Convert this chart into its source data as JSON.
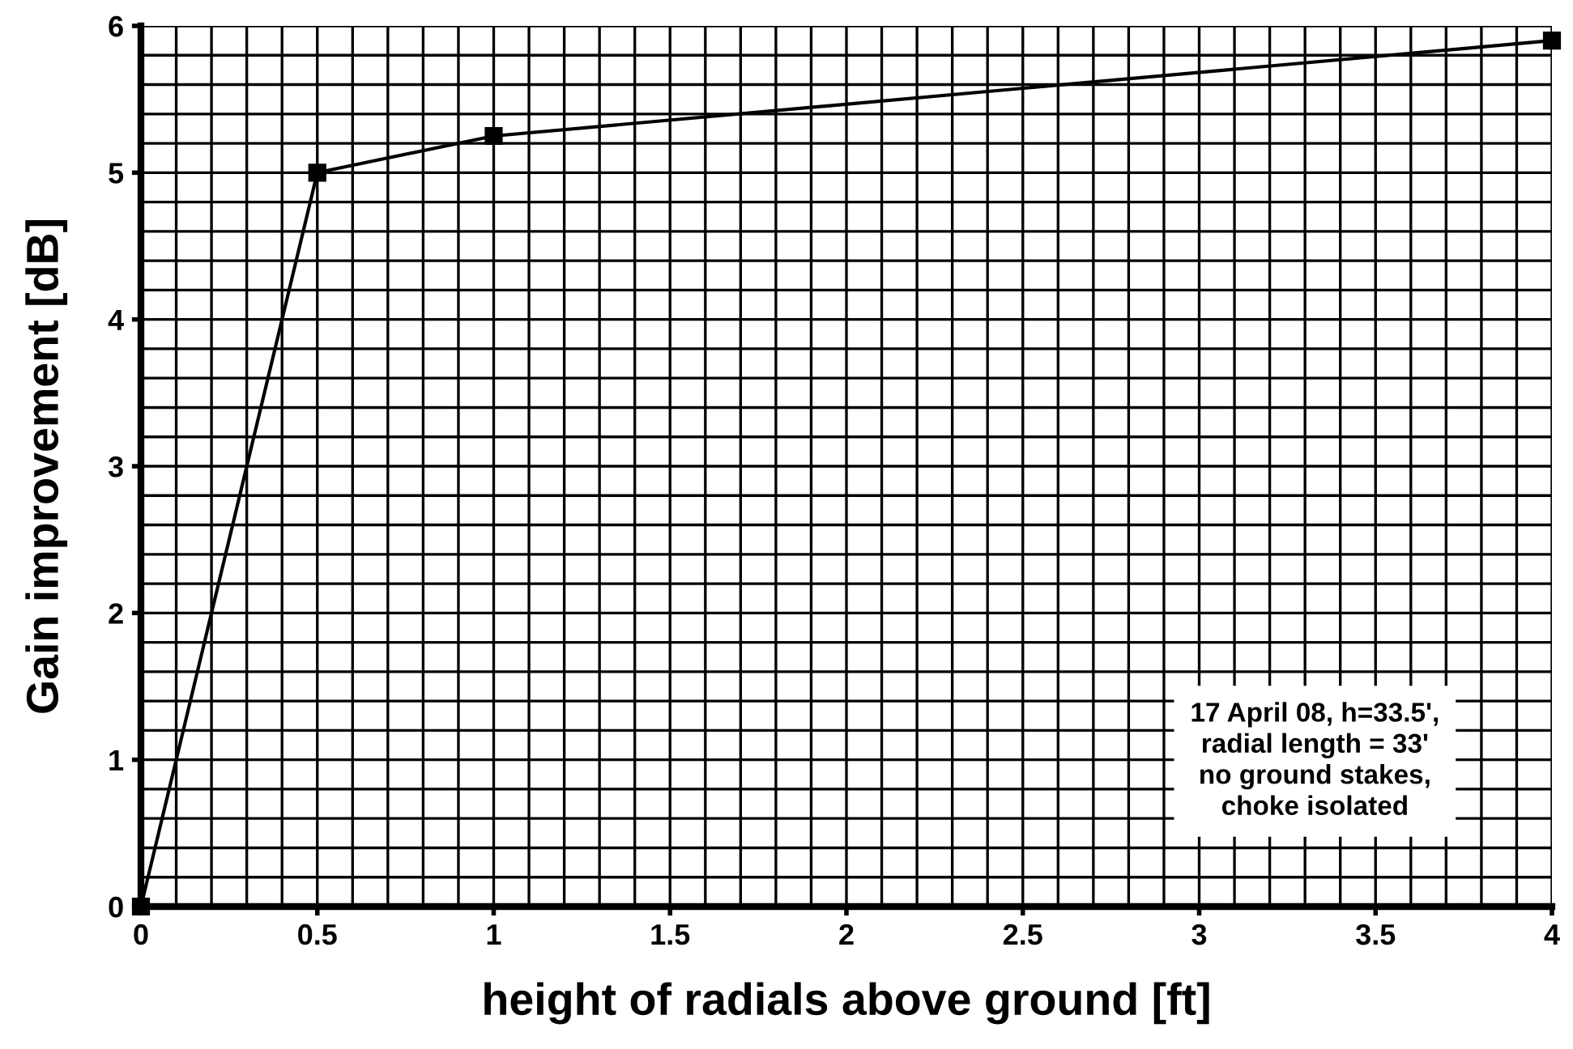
{
  "chart_data": {
    "type": "line",
    "xlabel": "height of radials above ground [ft]",
    "ylabel": "Gain improvement [dB]",
    "x": [
      0,
      0.5,
      1,
      4
    ],
    "series": [
      {
        "color": "#000000",
        "values": [
          0,
          5.0,
          5.25,
          5.9
        ]
      }
    ],
    "xlim": [
      0,
      4
    ],
    "ylim": [
      0,
      6
    ],
    "xticks": [
      0,
      {
        "value": 0.1,
        "label": null
      },
      {
        "value": 0.2,
        "label": null
      },
      {
        "value": 0.3,
        "label": null
      },
      {
        "value": 0.4,
        "label": null
      },
      0.5,
      {
        "value": 0.6,
        "label": null
      },
      {
        "value": 0.7,
        "label": null
      },
      {
        "value": 0.8,
        "label": null
      },
      {
        "value": 0.9,
        "label": null
      },
      1,
      {
        "value": 1.1,
        "label": null
      },
      {
        "value": 1.2,
        "label": null
      },
      {
        "value": 1.3,
        "label": null
      },
      {
        "value": 1.4,
        "label": null
      },
      1.5,
      {
        "value": 1.6,
        "label": null
      },
      {
        "value": 1.7,
        "label": null
      },
      {
        "value": 1.8,
        "label": null
      },
      {
        "value": 1.9,
        "label": null
      },
      2,
      {
        "value": 2.1,
        "label": null
      },
      {
        "value": 2.2,
        "label": null
      },
      {
        "value": 2.3,
        "label": null
      },
      {
        "value": 2.4,
        "label": null
      },
      2.5,
      {
        "value": 2.6,
        "label": null
      },
      {
        "value": 2.7,
        "label": null
      },
      {
        "value": 2.8,
        "label": null
      },
      {
        "value": 2.9,
        "label": null
      },
      3,
      {
        "value": 3.1,
        "label": null
      },
      {
        "value": 3.2,
        "label": null
      },
      {
        "value": 3.3,
        "label": null
      },
      {
        "value": 3.4,
        "label": null
      },
      3.5,
      {
        "value": 3.6,
        "label": null
      },
      {
        "value": 3.7,
        "label": null
      },
      {
        "value": 3.8,
        "label": null
      },
      {
        "value": 3.9,
        "label": null
      },
      4
    ],
    "yticks": [
      0,
      {
        "value": 0.2,
        "label": null
      },
      {
        "value": 0.4,
        "label": null
      },
      {
        "value": 0.6,
        "label": null
      },
      {
        "value": 0.8,
        "label": null
      },
      1,
      {
        "value": 1.2,
        "label": null
      },
      {
        "value": 1.4,
        "label": null
      },
      {
        "value": 1.6,
        "label": null
      },
      {
        "value": 1.8,
        "label": null
      },
      2,
      {
        "value": 2.2,
        "label": null
      },
      {
        "value": 2.4,
        "label": null
      },
      {
        "value": 2.6,
        "label": null
      },
      {
        "value": 2.8,
        "label": null
      },
      3,
      {
        "value": 3.2,
        "label": null
      },
      {
        "value": 3.4,
        "label": null
      },
      {
        "value": 3.6,
        "label": null
      },
      {
        "value": 3.8,
        "label": null
      },
      4,
      {
        "value": 4.2,
        "label": null
      },
      {
        "value": 4.4,
        "label": null
      },
      {
        "value": 4.6,
        "label": null
      },
      {
        "value": 4.8,
        "label": null
      },
      5,
      {
        "value": 5.2,
        "label": null
      },
      {
        "value": 5.4,
        "label": null
      },
      {
        "value": 5.6,
        "label": null
      },
      {
        "value": 5.8,
        "label": null
      },
      6
    ],
    "grid": true,
    "marker": "square",
    "line_style": "solid",
    "annotations": [
      "17 April 08, h=33.5',\nradial length = 33'\nno ground stakes,\nchoke isolated"
    ]
  }
}
